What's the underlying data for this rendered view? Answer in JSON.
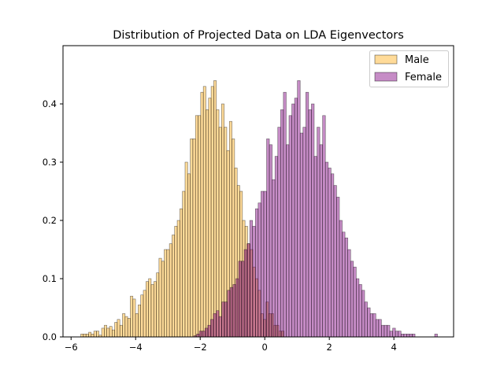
{
  "chart_data": {
    "type": "bar",
    "title": "Distribution of Projected Data on LDA Eigenvectors",
    "xlabel": "",
    "ylabel": "",
    "xlim": [
      -6.25,
      5.85
    ],
    "ylim": [
      0,
      0.5
    ],
    "xticks": [
      -6,
      -4,
      -2,
      0,
      2,
      4
    ],
    "xtick_labels": [
      "−6",
      "−4",
      "−2",
      "0",
      "2",
      "4"
    ],
    "yticks": [
      0.0,
      0.1,
      0.2,
      0.3,
      0.4
    ],
    "ytick_labels": [
      "0.0",
      "0.1",
      "0.2",
      "0.3",
      "0.4"
    ],
    "grid": false,
    "legend_position": "top-right",
    "series": [
      {
        "name": "Male",
        "color": "#FFA500",
        "fill_opacity": 0.4,
        "x_start": -5.7,
        "x_end": 0.6,
        "values": [
          0.005,
          0.005,
          0.005,
          0.008,
          0.005,
          0.01,
          0.01,
          0.003,
          0.015,
          0.02,
          0.015,
          0.018,
          0.012,
          0.025,
          0.03,
          0.02,
          0.04,
          0.035,
          0.032,
          0.07,
          0.065,
          0.04,
          0.055,
          0.072,
          0.08,
          0.095,
          0.1,
          0.09,
          0.095,
          0.11,
          0.135,
          0.13,
          0.15,
          0.15,
          0.16,
          0.175,
          0.19,
          0.2,
          0.22,
          0.25,
          0.3,
          0.28,
          0.34,
          0.34,
          0.38,
          0.38,
          0.42,
          0.43,
          0.39,
          0.41,
          0.43,
          0.44,
          0.39,
          0.36,
          0.4,
          0.36,
          0.32,
          0.37,
          0.34,
          0.29,
          0.26,
          0.25,
          0.2,
          0.19,
          0.16,
          0.15,
          0.12,
          0.1,
          0.08,
          0.04,
          0.03,
          0.06,
          0.04,
          0.04,
          0.02,
          0.02,
          0.01,
          0.01
        ]
      },
      {
        "name": "Female",
        "color": "#800080",
        "fill_opacity": 0.45,
        "x_start": -2.2,
        "x_end": 5.35,
        "values": [
          0.002,
          0.005,
          0.01,
          0.01,
          0.015,
          0.02,
          0.03,
          0.04,
          0.045,
          0.035,
          0.06,
          0.06,
          0.08,
          0.085,
          0.09,
          0.1,
          0.13,
          0.13,
          0.15,
          0.16,
          0.2,
          0.19,
          0.22,
          0.23,
          0.25,
          0.25,
          0.34,
          0.33,
          0.27,
          0.31,
          0.36,
          0.39,
          0.42,
          0.33,
          0.38,
          0.4,
          0.41,
          0.44,
          0.35,
          0.36,
          0.42,
          0.39,
          0.4,
          0.31,
          0.36,
          0.33,
          0.38,
          0.3,
          0.29,
          0.28,
          0.26,
          0.24,
          0.2,
          0.18,
          0.17,
          0.15,
          0.13,
          0.12,
          0.1,
          0.09,
          0.08,
          0.06,
          0.05,
          0.04,
          0.04,
          0.03,
          0.03,
          0.02,
          0.02,
          0.02,
          0.01,
          0.015,
          0.01,
          0.01,
          0.005,
          0.005,
          0.005,
          0.005,
          0.005,
          0.0,
          0.0,
          0.0,
          0.0,
          0.0,
          0.0,
          0.0,
          0.005
        ]
      }
    ]
  }
}
